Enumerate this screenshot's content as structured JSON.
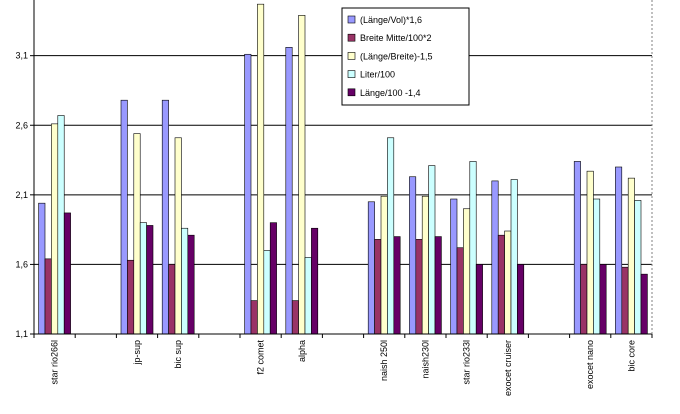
{
  "chart_data": {
    "type": "bar",
    "title": "",
    "xlabel": "",
    "ylabel": "",
    "ylim": [
      1.1,
      3.5
    ],
    "yticks": [
      "1,1",
      "1,6",
      "2,1",
      "2,6",
      "3,1"
    ],
    "ytick_values": [
      1.1,
      1.6,
      2.1,
      2.6,
      3.1
    ],
    "grid": true,
    "legend_position": "top-right",
    "categories": [
      "star rio266l",
      "",
      "jp-sup",
      "bic sup",
      "",
      "f2 comet",
      "alpha",
      "",
      "naish 250l",
      "naish230l",
      "star rio233l",
      "exocet cruiser",
      "",
      "exocet nano",
      "bic core"
    ],
    "series": [
      {
        "name": "(Länge/Vol)*1,6",
        "color": "#9999ff",
        "values": [
          2.04,
          null,
          2.78,
          2.78,
          null,
          3.11,
          3.16,
          null,
          2.05,
          2.23,
          2.07,
          2.2,
          null,
          2.34,
          2.3
        ]
      },
      {
        "name": "Breite Mitte/100*2",
        "color": "#993366",
        "values": [
          1.64,
          null,
          1.63,
          1.6,
          null,
          1.34,
          1.34,
          null,
          1.78,
          1.78,
          1.72,
          1.81,
          null,
          1.6,
          1.58
        ]
      },
      {
        "name": "(Länge/Breite)-1,5",
        "color": "#ffffcc",
        "values": [
          2.61,
          null,
          2.54,
          2.51,
          null,
          3.47,
          3.39,
          null,
          2.09,
          2.09,
          2.0,
          1.84,
          null,
          2.27,
          2.22
        ]
      },
      {
        "name": "Liter/100",
        "color": "#ccffff",
        "values": [
          2.67,
          null,
          1.9,
          1.86,
          null,
          1.7,
          1.65,
          null,
          2.51,
          2.31,
          2.34,
          2.21,
          null,
          2.07,
          2.06
        ]
      },
      {
        "name": "Länge/100 -1,4",
        "color": "#660066",
        "values": [
          1.97,
          null,
          1.88,
          1.81,
          null,
          1.9,
          1.86,
          null,
          1.8,
          1.8,
          1.6,
          1.6,
          null,
          1.6,
          1.53
        ]
      }
    ]
  }
}
